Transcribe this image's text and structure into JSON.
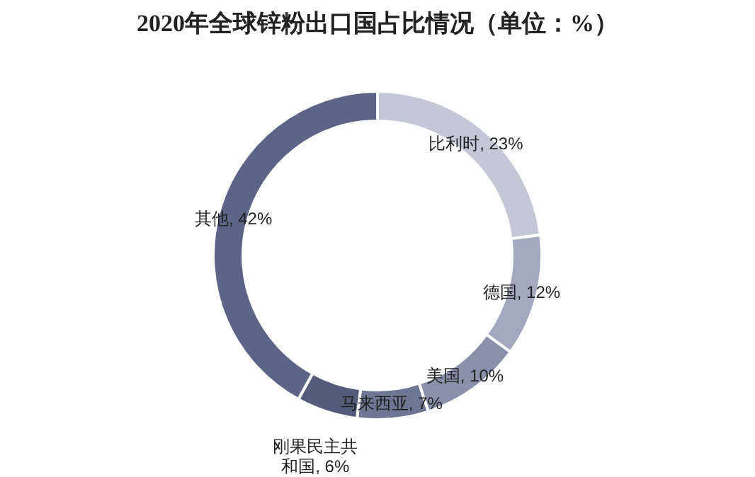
{
  "chart_data": {
    "type": "donut",
    "title": "2020年全球锌粉出口国占比情况（单位：%）",
    "categories": [
      "比利时",
      "德国",
      "美国",
      "马来西亚",
      "刚果民主共和国",
      "其他"
    ],
    "values": [
      23,
      12,
      10,
      7,
      6,
      42
    ],
    "value_labels": [
      "23%",
      "12%",
      "10%",
      "7%",
      "6%",
      "42%"
    ],
    "colors": [
      "#c3c7d6",
      "#a4a8bf",
      "#8a90ab",
      "#6f7594",
      "#555b7a",
      "#5e6487"
    ],
    "legend": false
  }
}
